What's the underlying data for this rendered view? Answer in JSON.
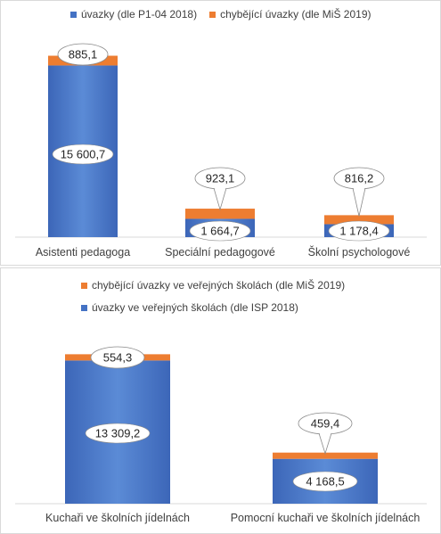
{
  "colors": {
    "blue": "#4472C4",
    "blue_light": "#5b8bd6",
    "orange": "#ED7D31",
    "axis": "#d9d9d9",
    "text": "#404040",
    "callout_border": "#8a8a8a"
  },
  "chart_data": [
    {
      "type": "bar",
      "stacked": true,
      "categories": [
        "Asistenti pedagoga",
        "Speciální pedagogové",
        "Školní psychologové"
      ],
      "series": [
        {
          "name": "úvazky (dle P1-04 2018)",
          "values": [
            15600.7,
            1664.7,
            1178.4
          ],
          "labels": [
            "15 600,7",
            "1 664,7",
            "1 178,4"
          ],
          "color": "#4472C4"
        },
        {
          "name": "chybějící úvazky (dle MiŠ 2019)",
          "values": [
            885.1,
            923.1,
            816.2
          ],
          "labels": [
            "885,1",
            "923,1",
            "816,2"
          ],
          "color": "#ED7D31"
        }
      ],
      "legend": "top",
      "grid": false,
      "ylim": [
        0,
        17500
      ]
    },
    {
      "type": "bar",
      "stacked": true,
      "categories": [
        "Kuchaři ve školních jídelnách",
        "Pomocní kuchaři ve školních jídelnách"
      ],
      "series": [
        {
          "name": "úvazky ve veřejných školách (dle ISP 2018)",
          "values": [
            13309.2,
            4168.5
          ],
          "labels": [
            "13 309,2",
            "4 168,5"
          ],
          "color": "#4472C4"
        },
        {
          "name": "chybějící úvazky ve veřejných školách (dle MiŠ 2019)",
          "values": [
            554.3,
            459.4
          ],
          "labels": [
            "554,3",
            "459,4"
          ],
          "color": "#ED7D31"
        }
      ],
      "legend_order": [
        1,
        0
      ],
      "legend": "top",
      "grid": false,
      "ylim": [
        0,
        14500
      ]
    }
  ]
}
